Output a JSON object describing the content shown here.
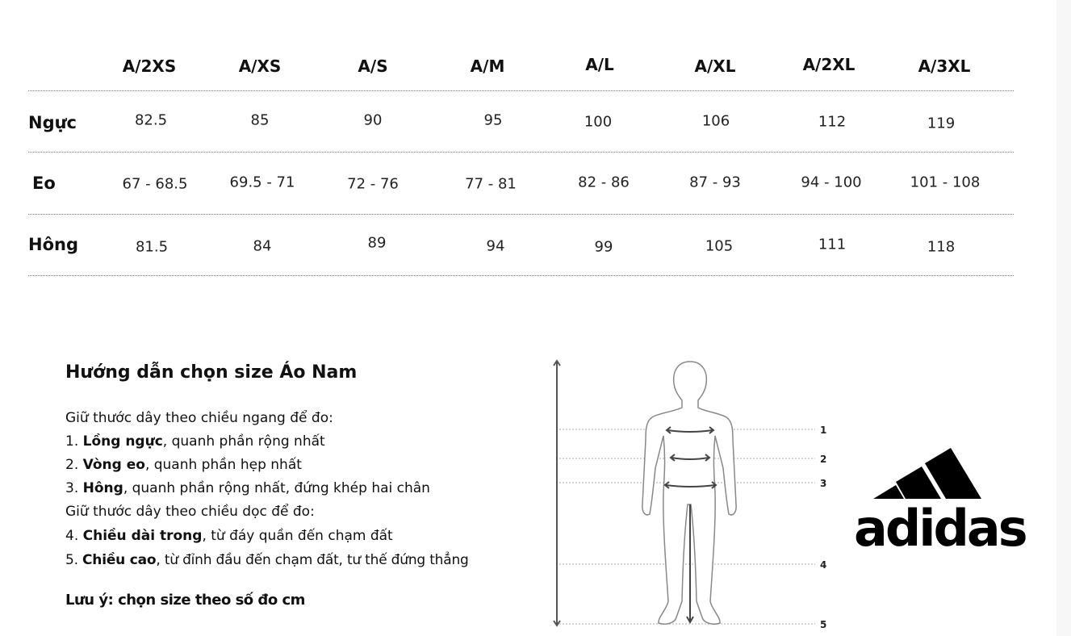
{
  "table": {
    "headers": [
      "A/2XS",
      "A/XS",
      "A/S",
      "A/M",
      "A/L",
      "A/XL",
      "A/2XL",
      "A/3XL"
    ],
    "rows": [
      {
        "label": "Ngực",
        "values": [
          "82.5",
          "85",
          "90",
          "95",
          "100",
          "106",
          "112",
          "119"
        ]
      },
      {
        "label": "Eo",
        "values": [
          "67 - 68.5",
          "69.5 - 71",
          "72 - 76",
          "77 - 81",
          "82 - 86",
          "87 - 93",
          "94 - 100",
          "101 - 108"
        ]
      },
      {
        "label": "Hông",
        "values": [
          "81.5",
          "84",
          "89",
          "94",
          "99",
          "105",
          "111",
          "118"
        ]
      }
    ]
  },
  "guide": {
    "title": "Hướng dẫn chọn size Áo Nam",
    "intro_horizontal": "Giữ thước dây theo chiều ngang để đo:",
    "items": [
      {
        "num": "1. ",
        "bold": "Lồng ngực",
        "rest": ", quanh phần rộng nhất"
      },
      {
        "num": "2. ",
        "bold": "Vòng eo",
        "rest": ", quanh phần hẹp nhất"
      },
      {
        "num": "3. ",
        "bold": "Hông",
        "rest": ", quanh phần rộng nhất, đứng khép hai chân"
      },
      {
        "num": "4. ",
        "bold": "Chiều dài trong",
        "rest": ", từ đáy quần đến chạm đất"
      },
      {
        "num": "5. ",
        "bold": "Chiều cao",
        "rest": ", từ đỉnh đầu đến chạm đất, tư thế đứng thẳng"
      }
    ],
    "intro_vertical": "Giữ thước dây theo chiều dọc để đo:",
    "note": "Lưu ý: chọn size theo số đo cm"
  },
  "figure": {
    "markers": [
      "1",
      "2",
      "3",
      "4",
      "5"
    ]
  },
  "logo": {
    "text": "adidas"
  }
}
